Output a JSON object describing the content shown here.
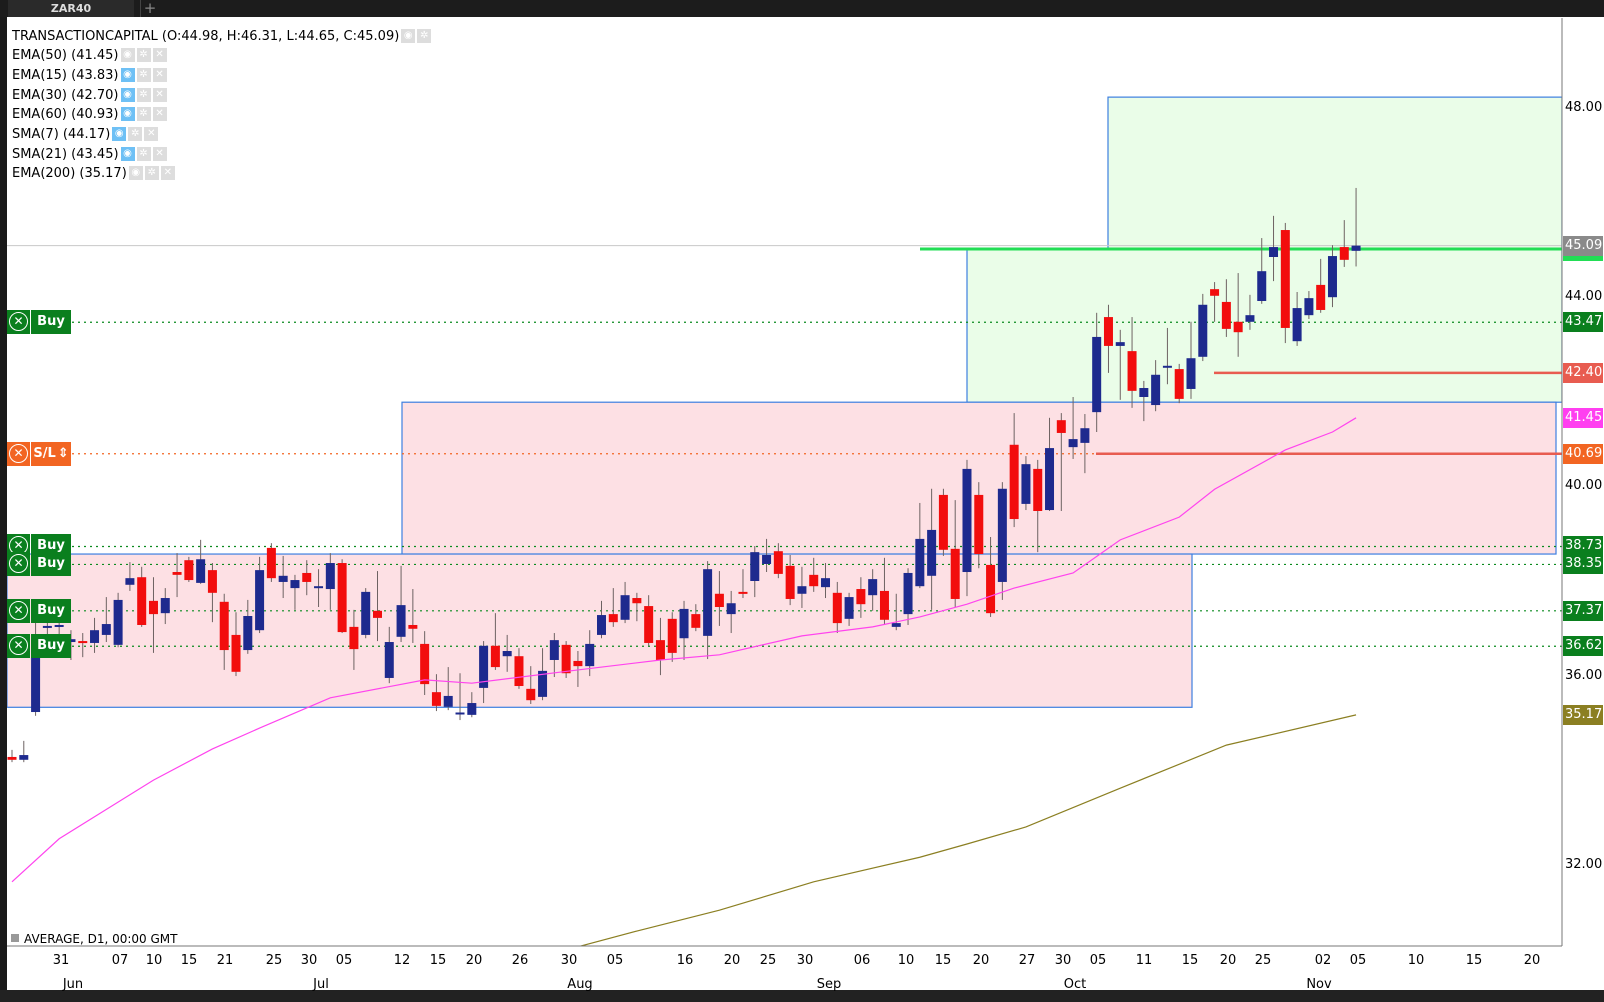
{
  "tab": {
    "title": "ZAR40",
    "add_icon": "+"
  },
  "legend": {
    "main": "TRANSACTIONCAPITAL (O:44.98, H:46.31, L:44.65, C:45.09)",
    "indicators": [
      {
        "label": "EMA(50) (41.45)",
        "visible": false
      },
      {
        "label": "EMA(15) (43.83)",
        "visible": true
      },
      {
        "label": "EMA(30) (42.70)",
        "visible": true
      },
      {
        "label": "EMA(60) (40.93)",
        "visible": true
      },
      {
        "label": "SMA(7) (44.17)",
        "visible": true
      },
      {
        "label": "SMA(21) (43.45)",
        "visible": true
      },
      {
        "label": "EMA(200) (35.17)",
        "visible": false
      }
    ]
  },
  "footer": "AVERAGE, D1, 00:00 GMT",
  "orders": [
    {
      "type": "Buy",
      "price": 43.47,
      "color": "#0a7f1e"
    },
    {
      "type": "S/L",
      "price": 40.69,
      "color": "#f26522"
    },
    {
      "type": "Buy",
      "price": 38.73,
      "color": "#0a7f1e"
    },
    {
      "type": "Buy",
      "price": 38.35,
      "color": "#0a7f1e"
    },
    {
      "type": "Buy",
      "price": 37.37,
      "color": "#0a7f1e"
    },
    {
      "type": "Buy",
      "price": 36.62,
      "color": "#0a7f1e"
    }
  ],
  "chart_data": {
    "type": "candlestick",
    "up_color": "#1e2a8e",
    "down_color": "#f20d0d",
    "ylim": [
      30.2,
      48.4
    ],
    "price_ticks": [
      "48.00",
      "44.00",
      "40.00",
      "36.00",
      "32.00"
    ],
    "price_labels": [
      {
        "text": "45.09",
        "color": "#8a8a8a"
      },
      {
        "text": "43.47",
        "color": "#0a7f1e"
      },
      {
        "text": "42.40",
        "color": "#e85c50"
      },
      {
        "text": "41.45",
        "color": "#ff3ff0"
      },
      {
        "text": "40.69",
        "color": "#f26522"
      },
      {
        "text": "38.73",
        "color": "#0a7f1e"
      },
      {
        "text": "38.35",
        "color": "#0a7f1e"
      },
      {
        "text": "37.37",
        "color": "#0a7f1e"
      },
      {
        "text": "36.62",
        "color": "#0a7f1e"
      },
      {
        "text": "35.17",
        "color": "#8b7f22"
      }
    ],
    "date_ticks": [
      "31",
      "07",
      "10",
      "15",
      "21",
      "25",
      "30",
      "05",
      "12",
      "15",
      "20",
      "26",
      "30",
      "05",
      "16",
      "20",
      "25",
      "30",
      "06",
      "10",
      "15",
      "20",
      "27",
      "30",
      "05",
      "11",
      "15",
      "20",
      "25",
      "02",
      "05",
      "10",
      "15",
      "20"
    ],
    "months": [
      "Jun",
      "Jul",
      "Aug",
      "Sep",
      "Oct",
      "Nov"
    ],
    "ohlc": [
      [
        34.28,
        34.43,
        34.17,
        34.22
      ],
      [
        34.22,
        34.62,
        34.17,
        34.32
      ],
      [
        35.23,
        37.18,
        35.15,
        36.75
      ],
      [
        37.01,
        37.28,
        36.75,
        37.05
      ],
      [
        37.03,
        37.28,
        36.54,
        37.07
      ],
      [
        36.71,
        36.96,
        36.33,
        36.77
      ],
      [
        36.73,
        36.9,
        36.39,
        36.71
      ],
      [
        36.69,
        37.22,
        36.48,
        36.96
      ],
      [
        36.86,
        37.66,
        36.71,
        37.09
      ],
      [
        36.65,
        37.75,
        36.6,
        37.6
      ],
      [
        37.92,
        38.4,
        37.79,
        38.06
      ],
      [
        38.08,
        38.3,
        37.03,
        37.07
      ],
      [
        37.58,
        38.08,
        36.48,
        37.3
      ],
      [
        37.32,
        37.85,
        37.09,
        37.64
      ],
      [
        38.19,
        38.59,
        37.66,
        38.13
      ],
      [
        38.44,
        38.51,
        37.98,
        38.02
      ],
      [
        37.96,
        38.87,
        37.94,
        38.46
      ],
      [
        38.23,
        38.38,
        37.13,
        37.75
      ],
      [
        37.56,
        37.73,
        36.12,
        36.54
      ],
      [
        36.86,
        37.34,
        35.99,
        36.08
      ],
      [
        36.54,
        37.6,
        36.46,
        37.26
      ],
      [
        36.96,
        38.51,
        36.9,
        38.23
      ],
      [
        38.7,
        38.8,
        37.98,
        38.06
      ],
      [
        37.98,
        38.53,
        37.64,
        38.11
      ],
      [
        37.85,
        38.13,
        37.39,
        38.02
      ],
      [
        38.17,
        38.44,
        37.7,
        37.98
      ],
      [
        37.85,
        38.25,
        37.45,
        37.89
      ],
      [
        37.83,
        38.59,
        37.39,
        38.38
      ],
      [
        38.38,
        38.46,
        36.9,
        36.92
      ],
      [
        37.03,
        37.39,
        36.12,
        36.56
      ],
      [
        36.86,
        37.85,
        36.79,
        37.77
      ],
      [
        37.37,
        38.21,
        36.73,
        37.22
      ],
      [
        35.95,
        37.03,
        35.84,
        36.71
      ],
      [
        36.82,
        38.32,
        36.71,
        37.49
      ],
      [
        37.07,
        37.83,
        36.69,
        36.99
      ],
      [
        36.67,
        36.94,
        35.59,
        35.82
      ],
      [
        35.65,
        36.03,
        35.25,
        35.36
      ],
      [
        35.34,
        36.18,
        35.27,
        35.57
      ],
      [
        35.21,
        36.05,
        35.06,
        35.22
      ],
      [
        35.17,
        35.65,
        35.12,
        35.42
      ],
      [
        35.74,
        36.73,
        35.42,
        36.63
      ],
      [
        36.63,
        37.32,
        36.12,
        36.18
      ],
      [
        36.41,
        36.86,
        36.08,
        36.52
      ],
      [
        36.41,
        36.58,
        35.72,
        35.78
      ],
      [
        35.72,
        36.2,
        35.4,
        35.48
      ],
      [
        35.55,
        36.58,
        35.48,
        36.1
      ],
      [
        36.33,
        36.9,
        35.97,
        36.75
      ],
      [
        36.65,
        36.73,
        35.95,
        36.05
      ],
      [
        36.31,
        36.52,
        35.76,
        36.2
      ],
      [
        36.2,
        36.96,
        35.99,
        36.67
      ],
      [
        36.86,
        37.58,
        36.79,
        37.28
      ],
      [
        37.3,
        37.85,
        37.03,
        37.13
      ],
      [
        37.18,
        37.98,
        37.11,
        37.7
      ],
      [
        37.64,
        37.75,
        37.15,
        37.53
      ],
      [
        37.47,
        37.7,
        36.63,
        36.69
      ],
      [
        36.75,
        37.22,
        36.01,
        36.33
      ],
      [
        37.2,
        37.34,
        36.29,
        36.48
      ],
      [
        36.79,
        37.58,
        36.33,
        37.41
      ],
      [
        37.3,
        37.51,
        36.94,
        37.01
      ],
      [
        36.84,
        38.42,
        36.35,
        38.25
      ],
      [
        37.73,
        38.21,
        37.05,
        37.45
      ],
      [
        37.3,
        37.79,
        36.9,
        37.53
      ],
      [
        37.77,
        38.25,
        37.64,
        37.73
      ],
      [
        38.0,
        38.74,
        37.66,
        38.61
      ],
      [
        38.36,
        38.89,
        38.19,
        38.55
      ],
      [
        38.63,
        38.8,
        38.06,
        38.15
      ],
      [
        38.32,
        38.55,
        37.49,
        37.62
      ],
      [
        37.73,
        38.3,
        37.43,
        37.89
      ],
      [
        38.13,
        38.49,
        37.77,
        37.89
      ],
      [
        37.87,
        38.38,
        37.64,
        38.06
      ],
      [
        37.75,
        37.98,
        36.9,
        37.11
      ],
      [
        37.2,
        37.75,
        37.05,
        37.66
      ],
      [
        37.83,
        38.08,
        37.22,
        37.51
      ],
      [
        37.7,
        38.25,
        37.37,
        38.04
      ],
      [
        37.79,
        38.49,
        37.07,
        37.18
      ],
      [
        37.03,
        37.73,
        36.96,
        37.11
      ],
      [
        37.3,
        38.27,
        37.07,
        38.17
      ],
      [
        37.89,
        39.65,
        37.85,
        38.89
      ],
      [
        38.11,
        39.95,
        37.39,
        39.08
      ],
      [
        39.82,
        39.95,
        38.53,
        38.66
      ],
      [
        38.68,
        39.71,
        37.45,
        37.62
      ],
      [
        38.19,
        40.56,
        37.68,
        40.37
      ],
      [
        39.82,
        40.09,
        38.27,
        38.57
      ],
      [
        38.34,
        38.93,
        37.24,
        37.32
      ],
      [
        37.98,
        40.09,
        37.6,
        39.95
      ],
      [
        40.88,
        41.55,
        39.14,
        39.31
      ],
      [
        39.63,
        40.64,
        39.5,
        40.47
      ],
      [
        40.37,
        40.56,
        38.61,
        39.48
      ],
      [
        39.5,
        41.45,
        39.48,
        40.81
      ],
      [
        41.4,
        41.55,
        39.48,
        41.13
      ],
      [
        40.83,
        41.89,
        40.58,
        41.0
      ],
      [
        40.92,
        41.53,
        40.28,
        41.23
      ],
      [
        41.57,
        43.67,
        41.15,
        43.16
      ],
      [
        43.58,
        43.84,
        42.4,
        42.97
      ],
      [
        42.97,
        43.31,
        41.83,
        43.05
      ],
      [
        42.86,
        43.58,
        41.66,
        42.02
      ],
      [
        41.89,
        42.23,
        41.38,
        42.08
      ],
      [
        41.72,
        42.67,
        41.59,
        42.36
      ],
      [
        42.52,
        43.35,
        42.16,
        42.55
      ],
      [
        42.48,
        42.59,
        41.76,
        41.85
      ],
      [
        42.06,
        43.48,
        41.85,
        42.71
      ],
      [
        42.74,
        44.07,
        42.65,
        43.84
      ],
      [
        44.17,
        44.32,
        43.48,
        44.03
      ],
      [
        43.9,
        44.38,
        43.16,
        43.33
      ],
      [
        43.48,
        44.51,
        42.74,
        43.26
      ],
      [
        43.48,
        44.05,
        43.31,
        43.62
      ],
      [
        43.92,
        45.25,
        43.86,
        44.55
      ],
      [
        44.85,
        45.72,
        44.34,
        45.06
      ],
      [
        45.42,
        45.57,
        43.03,
        43.35
      ],
      [
        43.07,
        44.11,
        42.97,
        43.77
      ],
      [
        43.62,
        44.13,
        43.54,
        43.98
      ],
      [
        44.26,
        44.81,
        43.67,
        43.73
      ],
      [
        44.0,
        45.1,
        43.79,
        44.87
      ],
      [
        45.06,
        45.63,
        44.64,
        44.79
      ],
      [
        44.98,
        46.31,
        44.65,
        45.09
      ]
    ],
    "ema50": {
      "color": "#ff44ee",
      "points": [
        [
          0,
          31.64
        ],
        [
          4,
          32.55
        ],
        [
          12,
          33.79
        ],
        [
          17,
          34.45
        ],
        [
          21,
          34.89
        ],
        [
          27,
          35.53
        ],
        [
          35,
          35.91
        ],
        [
          39,
          35.84
        ],
        [
          48,
          36.12
        ],
        [
          55,
          36.33
        ],
        [
          60,
          36.44
        ],
        [
          67,
          36.84
        ],
        [
          73,
          37.03
        ],
        [
          77,
          37.24
        ],
        [
          81,
          37.51
        ],
        [
          85,
          37.85
        ],
        [
          90,
          38.17
        ],
        [
          94,
          38.87
        ],
        [
          99,
          39.35
        ],
        [
          102,
          39.94
        ],
        [
          108,
          40.77
        ],
        [
          112,
          41.15
        ],
        [
          114,
          41.45
        ]
      ]
    },
    "ema200": {
      "color": "#8b7f22",
      "points": [
        [
          47,
          30.2
        ],
        [
          53,
          30.6
        ],
        [
          60,
          31.04
        ],
        [
          68,
          31.64
        ],
        [
          77,
          32.16
        ],
        [
          81,
          32.44
        ],
        [
          86,
          32.8
        ],
        [
          94,
          33.62
        ],
        [
          103,
          34.53
        ],
        [
          114,
          35.17
        ]
      ]
    },
    "zones": [
      {
        "kind": "target",
        "fill": "#eafde8",
        "top": 48.23,
        "bottom": 45.0
      },
      {
        "kind": "target",
        "fill": "#eafde8",
        "top": 45.0,
        "bottom": 41.78
      },
      {
        "kind": "stop",
        "fill": "#fde0e4",
        "top": 41.78,
        "bottom": 38.57
      },
      {
        "kind": "stop",
        "fill": "#fde0e4",
        "top": 38.57,
        "bottom": 35.33
      }
    ],
    "lines": [
      {
        "price": 45.09,
        "color": "#c8c8c8",
        "style": "solid"
      },
      {
        "price": 45.02,
        "color": "#22dd55",
        "style": "solid"
      },
      {
        "price": 42.4,
        "color": "#e85c50",
        "style": "solid"
      },
      {
        "price": 40.69,
        "color": "#e85c50",
        "style": "solid"
      }
    ]
  }
}
